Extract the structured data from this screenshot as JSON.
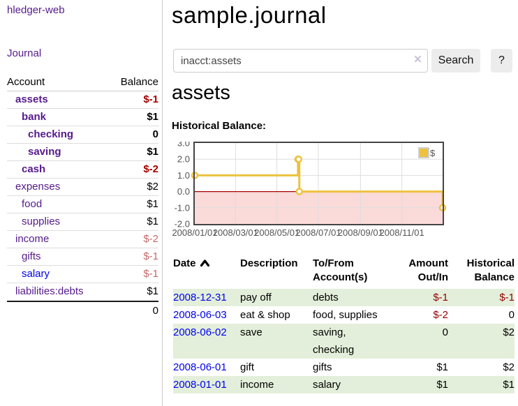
{
  "sidebar": {
    "brand": "hledger-web",
    "journal_link": "Journal",
    "accounts_table": {
      "headers": {
        "account": "Account",
        "balance": "Balance"
      },
      "rows": [
        {
          "name": "assets",
          "indent": 0,
          "bold": true,
          "balance": "$-1",
          "balance_style": "negative-strong",
          "link_variant": "visited"
        },
        {
          "name": "bank",
          "indent": 1,
          "bold": true,
          "balance": "$1",
          "balance_style": "normal",
          "link_variant": "visited"
        },
        {
          "name": "checking",
          "indent": 2,
          "bold": true,
          "balance": "0",
          "balance_style": "normal",
          "link_variant": "visited"
        },
        {
          "name": "saving",
          "indent": 2,
          "bold": true,
          "balance": "$1",
          "balance_style": "normal",
          "link_variant": "visited"
        },
        {
          "name": "cash",
          "indent": 1,
          "bold": true,
          "balance": "$-2",
          "balance_style": "negative-strong",
          "link_variant": "visited"
        },
        {
          "name": "expenses",
          "indent": 0,
          "bold": false,
          "balance": "$2",
          "balance_style": "normal",
          "link_variant": "visited"
        },
        {
          "name": "food",
          "indent": 1,
          "bold": false,
          "balance": "$1",
          "balance_style": "normal",
          "link_variant": "visited"
        },
        {
          "name": "supplies",
          "indent": 1,
          "bold": false,
          "balance": "$1",
          "balance_style": "normal",
          "link_variant": "visited"
        },
        {
          "name": "income",
          "indent": 0,
          "bold": false,
          "balance": "$-2",
          "balance_style": "negative-soft",
          "link_variant": "visited"
        },
        {
          "name": "gifts",
          "indent": 1,
          "bold": false,
          "balance": "$-1",
          "balance_style": "negative-soft",
          "link_variant": "visited"
        },
        {
          "name": "salary",
          "indent": 1,
          "bold": false,
          "balance": "$-1",
          "balance_style": "negative-soft",
          "link_variant": "unvisited"
        },
        {
          "name": "liabilities:debts",
          "indent": 0,
          "bold": false,
          "balance": "$1",
          "balance_style": "normal",
          "link_variant": "visited"
        }
      ],
      "total": "0"
    }
  },
  "header": {
    "title": "sample.journal"
  },
  "search": {
    "value": "inacct:assets",
    "clear_icon": "×",
    "button_label": "Search",
    "help_button_label": "?"
  },
  "account_page": {
    "heading": "assets",
    "chart_label": "Historical Balance:"
  },
  "chart_data": {
    "type": "line",
    "title": "Historical Balance:",
    "step": true,
    "series": [
      {
        "name": "$",
        "color": "#edc240",
        "points": [
          {
            "x": "2008-01-01",
            "y": 1
          },
          {
            "x": "2008-06-01",
            "y": 2
          },
          {
            "x": "2008-06-02",
            "y": 2
          },
          {
            "x": "2008-06-03",
            "y": 0
          },
          {
            "x": "2008-12-31",
            "y": -1
          }
        ]
      }
    ],
    "x_range": [
      "2008-01-01",
      "2008-12-31"
    ],
    "ylim": [
      -2,
      3
    ],
    "yticks": [
      "3.0",
      "2.0",
      "1.0",
      "0.0",
      "-1.0",
      "-2.0"
    ],
    "ytick_values": [
      3,
      2,
      1,
      0,
      -1,
      -2
    ],
    "xticks": [
      "2008/01/01",
      "2008/03/01",
      "2008/05/01",
      "2008/07/01",
      "2008/09/01",
      "2008/11/01"
    ],
    "legend": {
      "label": "$",
      "position": "top-right"
    },
    "grid": true,
    "negative_region_fill": "#fbdada",
    "zero_line_color": "#a40000",
    "grid_color": "#dddddd",
    "border_color": "#444444",
    "label_color": "#545454"
  },
  "register_table": {
    "columns": [
      {
        "label": "Date",
        "sorted": "ascending"
      },
      {
        "label": "Description"
      },
      {
        "label": "To/From Account(s)"
      },
      {
        "label": "Amount Out/In",
        "align": "right"
      },
      {
        "label": "Historical Balance",
        "align": "right"
      }
    ],
    "rows": [
      {
        "date": "2008-12-31",
        "description": "pay off",
        "accounts": "debts",
        "amount": "$-1",
        "amount_negative": true,
        "balance": "$-1",
        "balance_negative": true
      },
      {
        "date": "2008-06-03",
        "description": "eat & shop",
        "accounts": "food, supplies",
        "amount": "$-2",
        "amount_negative": true,
        "balance": "0",
        "balance_negative": false
      },
      {
        "date": "2008-06-02",
        "description": "save",
        "accounts": "saving, checking",
        "amount": "0",
        "amount_negative": false,
        "balance": "$2",
        "balance_negative": false
      },
      {
        "date": "2008-06-01",
        "description": "gift",
        "accounts": "gifts",
        "amount": "$1",
        "amount_negative": false,
        "balance": "$2",
        "balance_negative": false
      },
      {
        "date": "2008-01-01",
        "description": "income",
        "accounts": "salary",
        "amount": "$1",
        "amount_negative": false,
        "balance": "$1",
        "balance_negative": false
      }
    ]
  },
  "colors": {
    "link_visited_purple": "#551a8b",
    "link_unvisited_blue": "#0000ee",
    "negative_strong": "#a40000",
    "negative_soft": "#c46a6a",
    "negative_table": "#940000",
    "row_stripe_green": "#e3efda",
    "chart_series_yellow": "#edc240",
    "chart_negative_fill": "#fbdada",
    "sidebar_divider": "#cccccc"
  }
}
